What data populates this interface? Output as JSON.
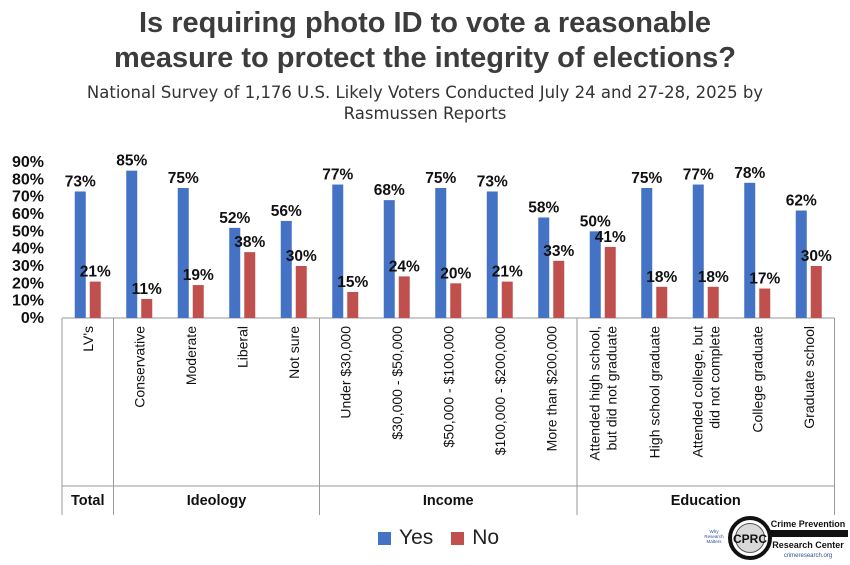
{
  "title": {
    "line1": "Is requiring photo ID to vote a reasonable",
    "line2": "measure to protect the integrity of elections?"
  },
  "subtitle": {
    "line1": "National Survey of 1,176 U.S. Likely Voters Conducted July 24 and 27-28, 2025 by",
    "line2": "Rasmussen Reports"
  },
  "colors": {
    "yes": "#4472c4",
    "no": "#c0504d"
  },
  "legend": {
    "yes": "Yes",
    "no": "No"
  },
  "chart_data": {
    "type": "bar",
    "ylim": [
      0,
      90
    ],
    "yticks": [
      "0%",
      "10%",
      "20%",
      "30%",
      "40%",
      "50%",
      "60%",
      "70%",
      "80%",
      "90%"
    ],
    "categories": [
      [
        "LV's"
      ],
      [
        "Conservative"
      ],
      [
        "Moderate"
      ],
      [
        "Liberal"
      ],
      [
        "Not sure"
      ],
      [
        "Under $30,000"
      ],
      [
        "$30,000 - $50,000"
      ],
      [
        "$50,000 - $100,000"
      ],
      [
        "$100,000 - $200,000"
      ],
      [
        "More than $200,000"
      ],
      [
        "Attended high school,",
        "but did not graduate"
      ],
      [
        "High school graduate"
      ],
      [
        "Attended college, but",
        "did not complete"
      ],
      [
        "College graduate"
      ],
      [
        "Graduate school"
      ]
    ],
    "groups": [
      {
        "label": "Total",
        "count": 1
      },
      {
        "label": "Ideology",
        "count": 4
      },
      {
        "label": "Income",
        "count": 5
      },
      {
        "label": "Education",
        "count": 5
      }
    ],
    "series": [
      {
        "name": "Yes",
        "values": [
          73,
          85,
          75,
          52,
          56,
          77,
          68,
          75,
          73,
          58,
          50,
          75,
          77,
          78,
          62
        ],
        "labels": [
          "73%",
          "85%",
          "75%",
          "52%",
          "56%",
          "77%",
          "68%",
          "75%",
          "73%",
          "58%",
          "50%",
          "75%",
          "77%",
          "78%",
          "62%"
        ]
      },
      {
        "name": "No",
        "values": [
          21,
          11,
          19,
          38,
          30,
          15,
          24,
          20,
          21,
          33,
          41,
          18,
          18,
          17,
          30
        ],
        "labels": [
          "21%",
          "11%",
          "19%",
          "38%",
          "30%",
          "15%",
          "24%",
          "20%",
          "21%",
          "33%",
          "41%",
          "18%",
          "18%",
          "17%",
          "30%"
        ]
      }
    ]
  },
  "logo": {
    "side_text": [
      "Why",
      "Research",
      "Matters"
    ],
    "name_line1": "Crime Prevention",
    "name_line2": "Research Center",
    "url": "crimeresearch.org",
    "mark": "CPRC"
  }
}
